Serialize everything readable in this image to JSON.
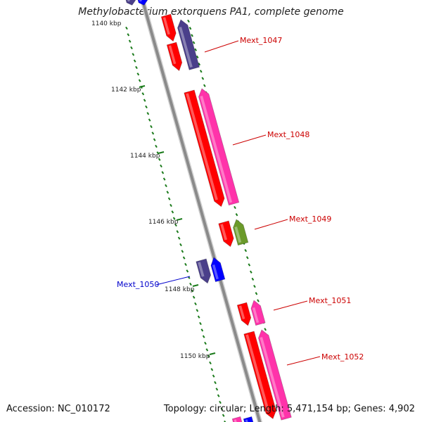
{
  "title": "Methylobacterium extorquens PA1, complete genome",
  "accession_text": "Accession: NC_010172",
  "summary_text": "Topology: circular; Length: 5,471,154 bp; Genes: 4,902",
  "colors": {
    "backbone": "#8a8a8a",
    "tick": "#1a7a1a",
    "label_red": "#cc0000",
    "label_blue": "#0000cc",
    "gene_red": "#ff0000",
    "gene_pink": "#ff33aa",
    "gene_navy": "#4a3f8a",
    "gene_blue": "#0000ff",
    "gene_green": "#6b9a2a"
  },
  "scale": {
    "labels": [
      "1140 kbp",
      "1142 kbp",
      "1144 kbp",
      "1146 kbp",
      "1148 kbp",
      "1150 kbp"
    ]
  },
  "genes": [
    {
      "label": "Mext_1047",
      "label_color": "red"
    },
    {
      "label": "Mext_1048",
      "label_color": "red"
    },
    {
      "label": "Mext_1049",
      "label_color": "red"
    },
    {
      "label": "Mext_1050",
      "label_color": "blue"
    },
    {
      "label": "Mext_1051",
      "label_color": "red"
    },
    {
      "label": "Mext_1052",
      "label_color": "red"
    }
  ]
}
